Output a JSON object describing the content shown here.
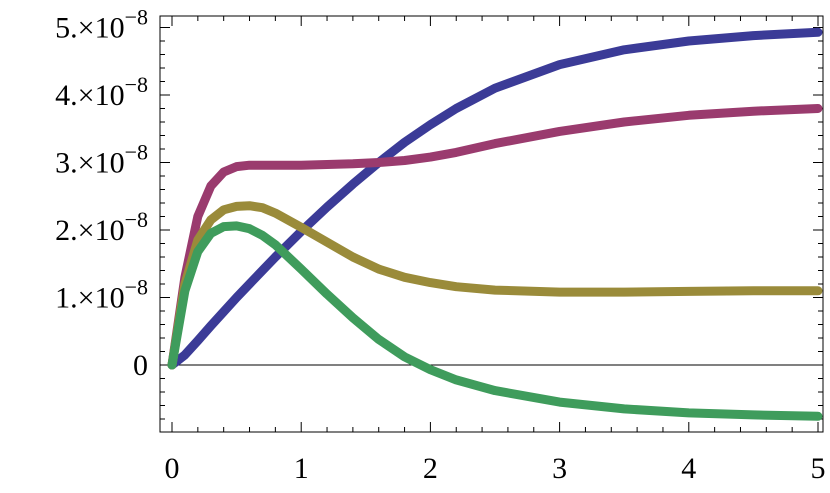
{
  "chart_data": {
    "type": "line",
    "title": "",
    "xlabel": "",
    "ylabel": "",
    "xlim": [
      0,
      5
    ],
    "ylim": [
      -1e-08,
      5e-08
    ],
    "grid": false,
    "x_ticks": [
      {
        "value": 0,
        "label": "0"
      },
      {
        "value": 1,
        "label": "1"
      },
      {
        "value": 2,
        "label": "2"
      },
      {
        "value": 3,
        "label": "3"
      },
      {
        "value": 4,
        "label": "4"
      },
      {
        "value": 5,
        "label": "5"
      }
    ],
    "y_ticks": [
      {
        "value": 0,
        "mantissa": "0",
        "exponent": ""
      },
      {
        "value": 1e-08,
        "mantissa": "1.×10",
        "exponent": "−8"
      },
      {
        "value": 2e-08,
        "mantissa": "2.×10",
        "exponent": "−8"
      },
      {
        "value": 3e-08,
        "mantissa": "3.×10",
        "exponent": "−8"
      },
      {
        "value": 4e-08,
        "mantissa": "4.×10",
        "exponent": "−8"
      },
      {
        "value": 5e-08,
        "mantissa": "5.×10",
        "exponent": "−8"
      }
    ],
    "x": [
      0,
      0.1,
      0.2,
      0.3,
      0.4,
      0.5,
      0.6,
      0.7,
      0.8,
      1.0,
      1.2,
      1.4,
      1.6,
      1.8,
      2.0,
      2.2,
      2.5,
      3.0,
      3.5,
      4.0,
      4.5,
      5.0
    ],
    "series": [
      {
        "color": "#3b3b97",
        "values": [
          0,
          1.5e-09,
          3.6e-09,
          5.8e-09,
          7.9e-09,
          1e-08,
          1.2e-08,
          1.4e-08,
          1.6e-08,
          1.98e-08,
          2.34e-08,
          2.68e-08,
          3e-08,
          3.3e-08,
          3.56e-08,
          3.8e-08,
          4.1e-08,
          4.45e-08,
          4.67e-08,
          4.8e-08,
          4.88e-08,
          4.93e-08
        ]
      },
      {
        "color": "#9a3b6e",
        "values": [
          0,
          1.3e-08,
          2.2e-08,
          2.65e-08,
          2.86e-08,
          2.94e-08,
          2.96e-08,
          2.96e-08,
          2.96e-08,
          2.96e-08,
          2.97e-08,
          2.98e-08,
          3e-08,
          3.03e-08,
          3.08e-08,
          3.15e-08,
          3.28e-08,
          3.46e-08,
          3.6e-08,
          3.7e-08,
          3.76e-08,
          3.8e-08
        ]
      },
      {
        "color": "#9a8b3a",
        "values": [
          0,
          1.2e-08,
          1.85e-08,
          2.15e-08,
          2.3e-08,
          2.35e-08,
          2.36e-08,
          2.33e-08,
          2.25e-08,
          2.04e-08,
          1.82e-08,
          1.6e-08,
          1.42e-08,
          1.3e-08,
          1.22e-08,
          1.16e-08,
          1.11e-08,
          1.08e-08,
          1.08e-08,
          1.09e-08,
          1.1e-08,
          1.1e-08
        ]
      },
      {
        "color": "#3f9c5c",
        "values": [
          0,
          1.1e-08,
          1.68e-08,
          1.95e-08,
          2.05e-08,
          2.06e-08,
          2.02e-08,
          1.92e-08,
          1.78e-08,
          1.42e-08,
          1.05e-08,
          7e-09,
          3.8e-09,
          1.2e-09,
          -7e-10,
          -2.2e-09,
          -3.8e-09,
          -5.5e-09,
          -6.5e-09,
          -7.1e-09,
          -7.4e-09,
          -7.6e-09
        ]
      }
    ]
  }
}
